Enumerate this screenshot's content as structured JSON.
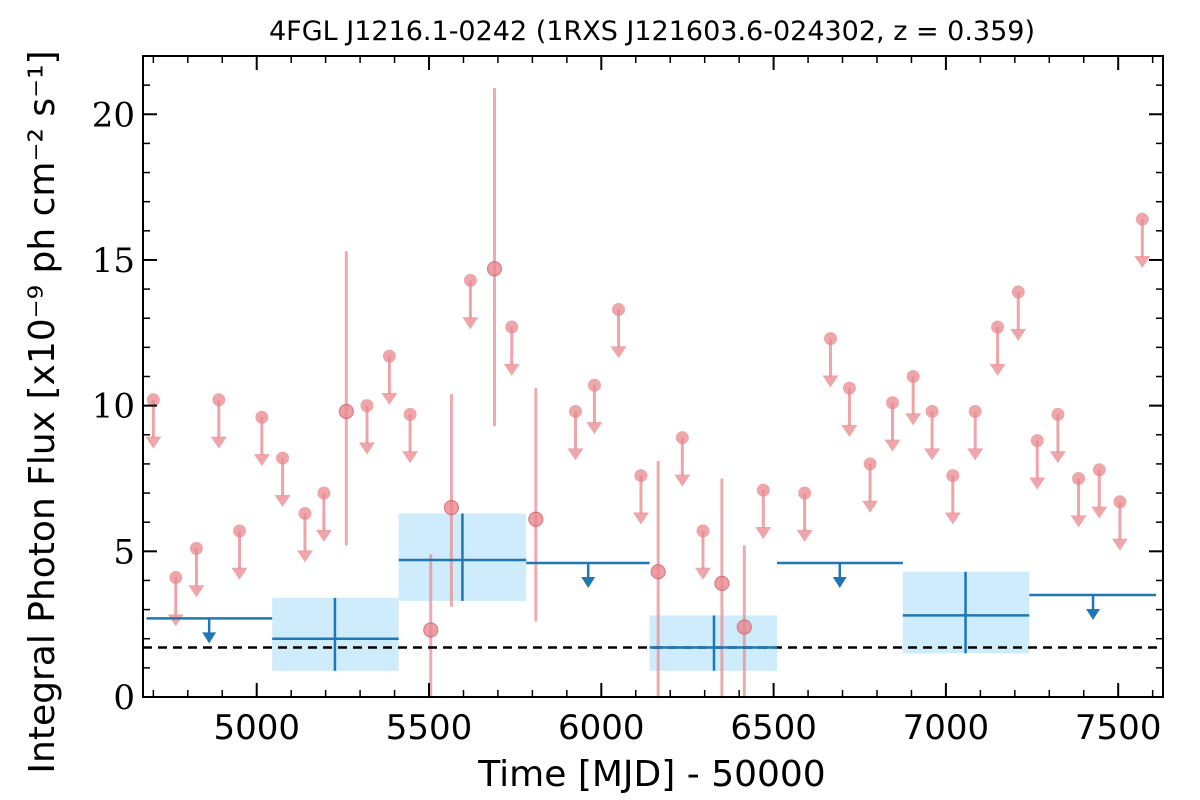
{
  "chart_data": {
    "type": "scatter",
    "title": "4FGL J1216.1-0242 (1RXS J121603.6-024302, z = 0.359)",
    "xlabel": "Time [MJD] - 50000",
    "ylabel": "Integral Photon Flux [x10⁻⁹ ph cm⁻² s⁻¹]",
    "xlim": [
      4670,
      7630
    ],
    "ylim": [
      0,
      22
    ],
    "x_ticks": [
      5000,
      5500,
      6000,
      6500,
      7000,
      7500
    ],
    "y_ticks": [
      0,
      5,
      10,
      15,
      20
    ],
    "reference_level": 1.7,
    "short_bins_upper_limits": {
      "x": [
        4700,
        4765,
        4825,
        4890,
        4950,
        5015,
        5075,
        5140,
        5195,
        5320,
        5385,
        5445,
        5620,
        5740,
        5925,
        5980,
        6050,
        6115,
        6235,
        6295,
        6470,
        6590,
        6665,
        6720,
        6780,
        6845,
        6905,
        6960,
        7020,
        7085,
        7150,
        7210,
        7265,
        7325,
        7385,
        7445,
        7505,
        7570
      ],
      "values": [
        10.2,
        4.1,
        5.1,
        10.2,
        5.7,
        9.6,
        8.2,
        6.3,
        7.0,
        10.0,
        11.7,
        9.7,
        14.3,
        12.7,
        9.8,
        10.7,
        13.3,
        7.6,
        8.9,
        5.7,
        7.1,
        7.0,
        12.3,
        10.6,
        8.0,
        10.1,
        11.0,
        9.8,
        7.6,
        9.8,
        12.7,
        13.9,
        8.8,
        9.7,
        7.5,
        7.8,
        6.7,
        16.4
      ]
    },
    "short_bins_detections": {
      "x": [
        5260,
        5505,
        5565,
        5690,
        5810,
        6165,
        6350,
        6415
      ],
      "values": [
        9.8,
        2.3,
        6.5,
        14.7,
        6.1,
        4.3,
        3.9,
        2.4
      ],
      "err_low": [
        4.6,
        2.3,
        3.4,
        5.4,
        3.5,
        4.3,
        3.9,
        2.4
      ],
      "err_high": [
        5.5,
        2.6,
        3.9,
        6.2,
        4.5,
        3.8,
        3.6,
        2.8
      ]
    },
    "long_bins_detections": {
      "x": [
        5227,
        5597,
        6327,
        7057
      ],
      "values": [
        2.0,
        4.7,
        1.7,
        2.8
      ],
      "x_low": [
        5045,
        5412,
        6140,
        6875
      ],
      "x_high": [
        5412,
        5782,
        6510,
        7242
      ],
      "err_low": [
        1.1,
        1.4,
        0.8,
        1.3
      ],
      "err_high": [
        1.4,
        1.6,
        1.1,
        1.5
      ]
    },
    "long_bins_upper_limits": {
      "x": [
        4862,
        5962,
        6692,
        7427
      ],
      "values": [
        2.7,
        4.6,
        4.6,
        3.5
      ],
      "x_low": [
        4680,
        5782,
        6510,
        7242
      ],
      "x_high": [
        5045,
        6140,
        6875,
        7610
      ]
    },
    "colors": {
      "short_bins": "#e8888e",
      "long_bins": "#1f77b4",
      "long_bins_fill": "#aee0f8",
      "reference_level": "#000000"
    }
  }
}
